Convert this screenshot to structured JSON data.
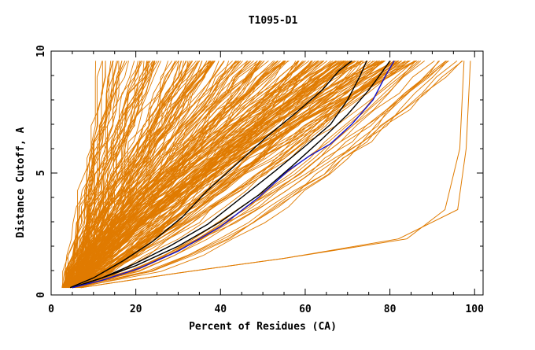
{
  "chart_data": {
    "type": "line",
    "title": "T1095-D1",
    "xlabel": "Percent of Residues (CA)",
    "ylabel": "Distance Cutoff, A",
    "xlim": [
      0,
      102
    ],
    "ylim": [
      0,
      10
    ],
    "x_ticks": [
      {
        "value": 0,
        "label": "0"
      },
      {
        "value": 20,
        "label": "20"
      },
      {
        "value": 40,
        "label": "40"
      },
      {
        "value": 60,
        "label": "60"
      },
      {
        "value": 80,
        "label": "80"
      },
      {
        "value": 100,
        "label": "100"
      }
    ],
    "y_ticks": [
      {
        "value": 0,
        "label": "0"
      },
      {
        "value": 5,
        "label": "5"
      },
      {
        "value": 10,
        "label": "10"
      }
    ],
    "grid": false,
    "colors": {
      "models": "#e07b00",
      "highlight_black": "#000000",
      "highlight_blue": "#1010d0"
    },
    "series": [
      {
        "color": "#000000",
        "points": [
          [
            4.5,
            0.3
          ],
          [
            10,
            0.7
          ],
          [
            17,
            1.4
          ],
          [
            24,
            2.2
          ],
          [
            31,
            3.2
          ],
          [
            37,
            4.3
          ],
          [
            44,
            5.4
          ],
          [
            51,
            6.5
          ],
          [
            58,
            7.5
          ],
          [
            64,
            8.4
          ],
          [
            68,
            9.2
          ],
          [
            71,
            9.6
          ]
        ]
      },
      {
        "color": "#000000",
        "points": [
          [
            5,
            0.3
          ],
          [
            12,
            0.7
          ],
          [
            20,
            1.3
          ],
          [
            28,
            2.0
          ],
          [
            37,
            2.9
          ],
          [
            45,
            4.0
          ],
          [
            53,
            5.1
          ],
          [
            60,
            6.1
          ],
          [
            66,
            7.0
          ],
          [
            70,
            8.0
          ],
          [
            73,
            9.0
          ],
          [
            74.5,
            9.6
          ]
        ]
      },
      {
        "color": "#000000",
        "points": [
          [
            5,
            0.3
          ],
          [
            12,
            0.7
          ],
          [
            20,
            1.2
          ],
          [
            30,
            2.0
          ],
          [
            40,
            3.0
          ],
          [
            49,
            4.1
          ],
          [
            57,
            5.3
          ],
          [
            64,
            6.4
          ],
          [
            70,
            7.4
          ],
          [
            75,
            8.4
          ],
          [
            78,
            9.1
          ],
          [
            80,
            9.6
          ]
        ]
      },
      {
        "color": "#1010d0",
        "points": [
          [
            5,
            0.3
          ],
          [
            12,
            0.6
          ],
          [
            21,
            1.1
          ],
          [
            30,
            1.8
          ],
          [
            40,
            2.8
          ],
          [
            49,
            4.0
          ],
          [
            56,
            5.1
          ],
          [
            61,
            5.7
          ],
          [
            66,
            6.2
          ],
          [
            71,
            7.0
          ],
          [
            76,
            8.0
          ],
          [
            79,
            9.0
          ],
          [
            81,
            9.6
          ]
        ]
      }
    ]
  }
}
